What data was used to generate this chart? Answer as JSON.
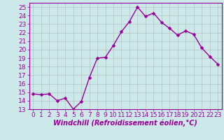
{
  "x": [
    0,
    1,
    2,
    3,
    4,
    5,
    6,
    7,
    8,
    9,
    10,
    11,
    12,
    13,
    14,
    15,
    16,
    17,
    18,
    19,
    20,
    21,
    22,
    23
  ],
  "y": [
    14.8,
    14.7,
    14.8,
    14.0,
    14.3,
    13.0,
    13.9,
    16.7,
    19.0,
    19.1,
    20.5,
    22.1,
    23.3,
    25.0,
    23.9,
    24.3,
    23.2,
    22.5,
    21.7,
    22.2,
    21.8,
    20.2,
    19.2,
    18.3
  ],
  "line_color": "#990099",
  "marker_color": "#990099",
  "bg_color": "#cce8e8",
  "grid_color": "#aaaaaa",
  "xlabel": "Windchill (Refroidissement éolien,°C)",
  "xlabel_color": "#990099",
  "ylim": [
    13,
    25.5
  ],
  "xlim": [
    -0.5,
    23.5
  ],
  "yticks": [
    13,
    14,
    15,
    16,
    17,
    18,
    19,
    20,
    21,
    22,
    23,
    24,
    25
  ],
  "xticks": [
    0,
    1,
    2,
    3,
    4,
    5,
    6,
    7,
    8,
    9,
    10,
    11,
    12,
    13,
    14,
    15,
    16,
    17,
    18,
    19,
    20,
    21,
    22,
    23
  ],
  "tick_color": "#990099",
  "font_size": 6.5,
  "xlabel_fontsize": 7,
  "linewidth": 1.0,
  "markersize": 2.5
}
